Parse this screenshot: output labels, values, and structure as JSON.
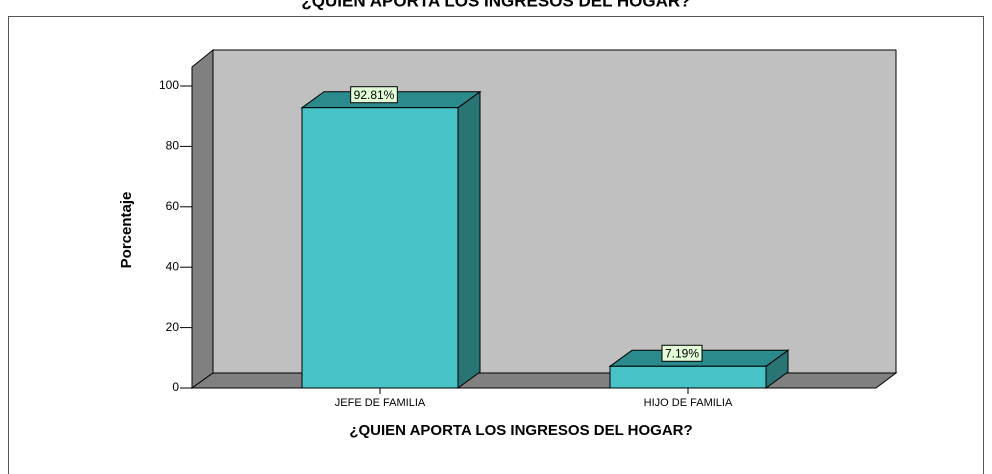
{
  "chart_data": {
    "type": "bar3d",
    "title": "¿QUIEN APORTA LOS INGRESOS DEL HOGAR?",
    "x_label": "¿QUIEN APORTA LOS INGRESOS DEL HOGAR?",
    "y_label": "Porcentaje",
    "categories": [
      "JEFE DE FAMILIA",
      "HIJO DE FAMILIA"
    ],
    "values": [
      92.81,
      7.19
    ],
    "value_labels": [
      "92.81%",
      "7.19%"
    ],
    "color": "#48c4c8",
    "ylim": [
      0,
      100
    ],
    "yticks": [
      0,
      20,
      40,
      60,
      80,
      100
    ]
  }
}
